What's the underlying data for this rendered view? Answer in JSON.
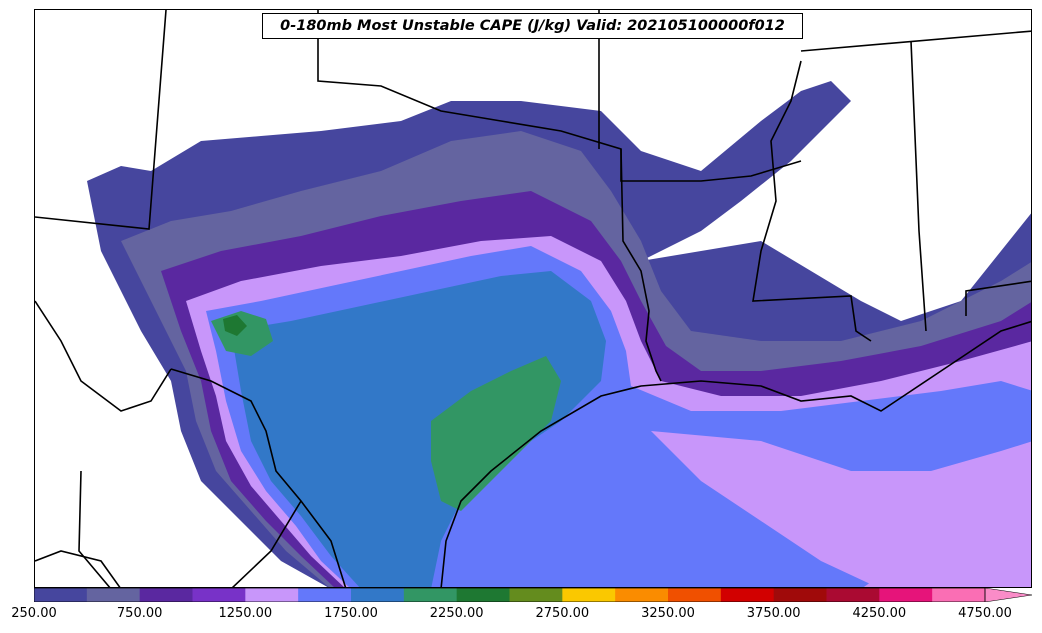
{
  "title": "0-180mb Most Unstable CAPE (J/kg) Valid: 202105100000f012",
  "colorbar": {
    "colors": [
      "#46469e",
      "#6464a0",
      "#5a28a0",
      "#7832c8",
      "#c896fa",
      "#6478fa",
      "#3278c8",
      "#329664",
      "#1e7832",
      "#648c1e",
      "#fac800",
      "#fa8c00",
      "#f05000",
      "#d20000",
      "#a00a0a",
      "#aa0a32",
      "#e6147a",
      "#fa6eb4"
    ],
    "extend_color": "#fa8cc8",
    "tick_labels": [
      "250.00",
      "750.00",
      "1250.00",
      "1750.00",
      "2250.00",
      "2750.00",
      "3250.00",
      "3750.00",
      "4250.00",
      "4750.00"
    ]
  }
}
